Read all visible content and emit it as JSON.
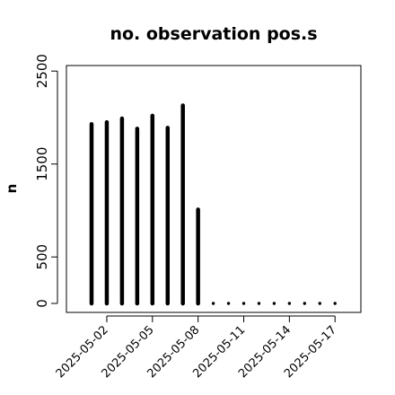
{
  "chart_data": {
    "type": "bar",
    "title": "no. observation pos.s",
    "xlabel": "",
    "ylabel": "n",
    "x": [
      "2025-05-01",
      "2025-05-02",
      "2025-05-03",
      "2025-05-04",
      "2025-05-05",
      "2025-05-06",
      "2025-05-07",
      "2025-05-08",
      "2025-05-09",
      "2025-05-10",
      "2025-05-11",
      "2025-05-12",
      "2025-05-13",
      "2025-05-14",
      "2025-05-15",
      "2025-05-16",
      "2025-05-17"
    ],
    "values": [
      1930,
      1950,
      1990,
      1880,
      2020,
      1890,
      2130,
      1010,
      0,
      0,
      0,
      0,
      0,
      0,
      0,
      0,
      0
    ],
    "ylim": [
      0,
      2550
    ],
    "yticks": [
      0,
      500,
      1500,
      2500
    ],
    "ytick_labels": [
      "0",
      "500",
      "1500",
      "2500"
    ],
    "xticks": [
      "2025-05-02",
      "2025-05-05",
      "2025-05-08",
      "2025-05-11",
      "2025-05-14",
      "2025-05-17"
    ],
    "xtick_labels": [
      "2025-05-02",
      "2025-05-05",
      "2025-05-08",
      "2025-05-11",
      "2025-05-14",
      "2025-05-17"
    ],
    "highlighted_xtick": "2025-05-08",
    "grid": false,
    "legend": "none"
  },
  "colors": {
    "bars": "#000000",
    "axes": "#000000",
    "highlight_tick": "#228B22",
    "background": "#ffffff"
  }
}
